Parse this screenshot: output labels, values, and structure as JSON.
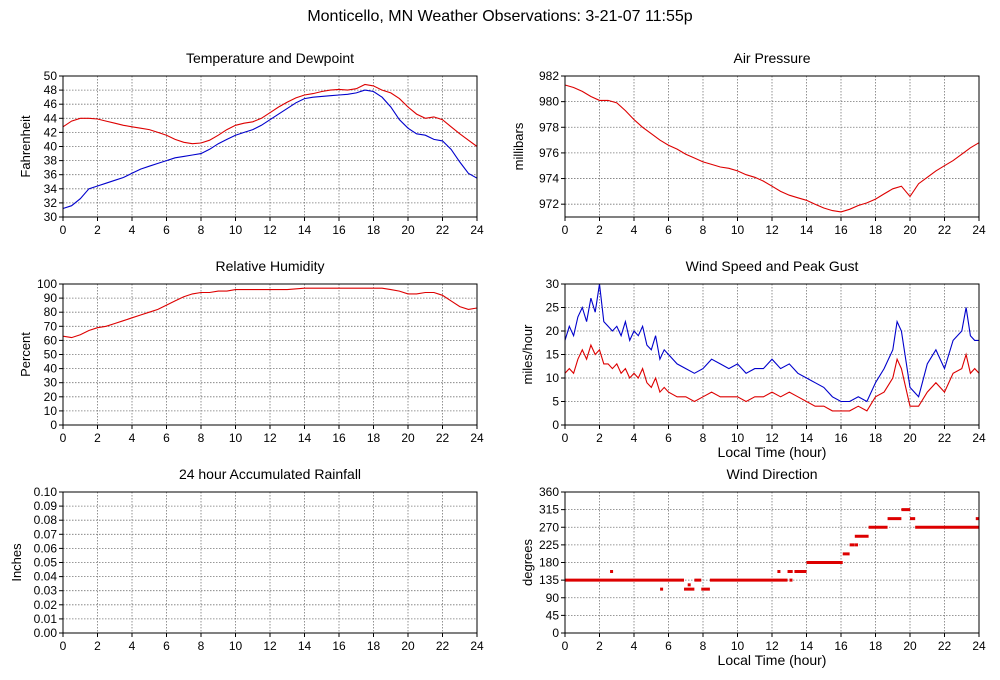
{
  "title": "Monticello, MN Weather Observations: 3-21-07 11:55p",
  "colors": {
    "red": "#dd0000",
    "blue": "#0000cc",
    "grid": "#777777"
  },
  "chart_data": [
    {
      "id": "temp",
      "type": "line",
      "title": "Temperature and Dewpoint",
      "ylabel": "Fahrenheit",
      "xlabel": "",
      "xlim": [
        0,
        24
      ],
      "ylim": [
        30,
        50
      ],
      "xticks": [
        0,
        2,
        4,
        6,
        8,
        10,
        12,
        14,
        16,
        18,
        20,
        22,
        24
      ],
      "yticks": [
        30,
        32,
        34,
        36,
        38,
        40,
        42,
        44,
        46,
        48,
        50
      ],
      "grid": true,
      "series": [
        {
          "color": "red",
          "x": [
            0,
            0.5,
            1,
            1.5,
            2,
            2.5,
            3,
            3.5,
            4,
            4.5,
            5,
            5.5,
            6,
            6.5,
            7,
            7.5,
            8,
            8.5,
            9,
            9.5,
            10,
            10.5,
            11,
            11.5,
            12,
            12.5,
            13,
            13.5,
            14,
            14.5,
            15,
            15.5,
            16,
            16.5,
            17,
            17.5,
            18,
            18.5,
            19,
            19.5,
            20,
            20.5,
            21,
            21.5,
            22,
            22.5,
            23,
            23.5,
            24
          ],
          "y": [
            42.8,
            43.6,
            44.0,
            44.0,
            43.9,
            43.6,
            43.3,
            43.0,
            42.8,
            42.6,
            42.4,
            42.0,
            41.6,
            41.0,
            40.6,
            40.4,
            40.5,
            40.9,
            41.6,
            42.4,
            43.0,
            43.3,
            43.5,
            44.0,
            44.8,
            45.6,
            46.3,
            46.9,
            47.3,
            47.5,
            47.8,
            48.0,
            48.1,
            48.0,
            48.2,
            48.8,
            48.6,
            48.0,
            47.6,
            46.8,
            45.6,
            44.6,
            44.0,
            44.2,
            43.8,
            42.8,
            41.8,
            40.9,
            40.0
          ]
        },
        {
          "color": "blue",
          "x": [
            0,
            0.5,
            1,
            1.5,
            2,
            2.5,
            3,
            3.5,
            4,
            4.5,
            5,
            5.5,
            6,
            6.5,
            7,
            7.5,
            8,
            8.5,
            9,
            9.5,
            10,
            10.5,
            11,
            11.5,
            12,
            12.5,
            13,
            13.5,
            14,
            14.5,
            15,
            15.5,
            16,
            16.5,
            17,
            17.5,
            18,
            18.5,
            19,
            19.5,
            20,
            20.5,
            21,
            21.5,
            22,
            22.5,
            23,
            23.5,
            24
          ],
          "y": [
            31.2,
            31.6,
            32.6,
            34.0,
            34.4,
            34.8,
            35.2,
            35.6,
            36.2,
            36.8,
            37.2,
            37.6,
            38.0,
            38.4,
            38.6,
            38.8,
            39.0,
            39.6,
            40.4,
            41.0,
            41.6,
            42.0,
            42.4,
            43.0,
            43.8,
            44.6,
            45.4,
            46.2,
            46.8,
            47.0,
            47.1,
            47.2,
            47.3,
            47.4,
            47.6,
            48.0,
            47.8,
            47.0,
            45.6,
            43.8,
            42.6,
            41.8,
            41.6,
            41.0,
            40.8,
            39.6,
            37.8,
            36.2,
            35.5
          ]
        }
      ]
    },
    {
      "id": "pressure",
      "type": "line",
      "title": "Air Pressure",
      "ylabel": "millibars",
      "xlabel": "",
      "xlim": [
        0,
        24
      ],
      "ylim": [
        971,
        982
      ],
      "xticks": [
        0,
        2,
        4,
        6,
        8,
        10,
        12,
        14,
        16,
        18,
        20,
        22,
        24
      ],
      "yticks": [
        972,
        974,
        976,
        978,
        980,
        982
      ],
      "grid": true,
      "series": [
        {
          "color": "red",
          "x": [
            0,
            0.5,
            1,
            1.5,
            2,
            2.5,
            3,
            3.5,
            4,
            4.5,
            5,
            5.5,
            6,
            6.5,
            7,
            7.5,
            8,
            8.5,
            9,
            9.5,
            10,
            10.5,
            11,
            11.5,
            12,
            12.5,
            13,
            13.5,
            14,
            14.5,
            15,
            15.5,
            16,
            16.5,
            17,
            17.5,
            18,
            18.5,
            19,
            19.5,
            20,
            20.5,
            21,
            21.5,
            22,
            22.5,
            23,
            23.5,
            24
          ],
          "y": [
            981.3,
            981.1,
            980.8,
            980.4,
            980.1,
            980.1,
            979.9,
            979.3,
            978.6,
            978.0,
            977.5,
            977.0,
            976.6,
            976.3,
            975.9,
            975.6,
            975.3,
            975.1,
            974.9,
            974.8,
            974.6,
            974.3,
            974.1,
            973.8,
            973.4,
            973.0,
            972.7,
            972.5,
            972.3,
            972.0,
            971.7,
            971.5,
            971.4,
            971.6,
            971.9,
            972.1,
            972.4,
            972.8,
            973.2,
            973.4,
            972.6,
            973.6,
            974.1,
            974.6,
            975.0,
            975.4,
            975.9,
            976.4,
            976.8
          ]
        }
      ]
    },
    {
      "id": "humidity",
      "type": "line",
      "title": "Relative Humidity",
      "ylabel": "Percent",
      "xlabel": "",
      "xlim": [
        0,
        24
      ],
      "ylim": [
        0,
        100
      ],
      "xticks": [
        0,
        2,
        4,
        6,
        8,
        10,
        12,
        14,
        16,
        18,
        20,
        22,
        24
      ],
      "yticks": [
        0,
        10,
        20,
        30,
        40,
        50,
        60,
        70,
        80,
        90,
        100
      ],
      "grid": true,
      "series": [
        {
          "color": "red",
          "x": [
            0,
            0.5,
            1,
            1.5,
            2,
            2.5,
            3,
            3.5,
            4,
            4.5,
            5,
            5.5,
            6,
            6.5,
            7,
            7.5,
            8,
            8.5,
            9,
            9.5,
            10,
            11,
            12,
            13,
            14,
            15,
            16,
            17,
            18,
            18.5,
            19,
            19.5,
            20,
            20.5,
            21,
            21.5,
            22,
            22.5,
            23,
            23.5,
            24
          ],
          "y": [
            63,
            62,
            64,
            67,
            69,
            70,
            72,
            74,
            76,
            78,
            80,
            82,
            85,
            88,
            91,
            93,
            94,
            94,
            95,
            95,
            96,
            96,
            96,
            96,
            97,
            97,
            97,
            97,
            97,
            97,
            96,
            95,
            93,
            93,
            94,
            94,
            92,
            88,
            84,
            82,
            83
          ]
        }
      ]
    },
    {
      "id": "wind",
      "type": "line",
      "title": "Wind Speed and Peak Gust",
      "ylabel": "miles/hour",
      "xlabel": "Local Time (hour)",
      "xlim": [
        0,
        24
      ],
      "ylim": [
        0,
        30
      ],
      "xticks": [
        0,
        2,
        4,
        6,
        8,
        10,
        12,
        14,
        16,
        18,
        20,
        22,
        24
      ],
      "yticks": [
        0,
        5,
        10,
        15,
        20,
        25,
        30
      ],
      "grid": true,
      "series": [
        {
          "color": "blue",
          "x": [
            0,
            0.25,
            0.5,
            0.75,
            1,
            1.25,
            1.5,
            1.75,
            2,
            2.25,
            2.5,
            2.75,
            3,
            3.25,
            3.5,
            3.75,
            4,
            4.25,
            4.5,
            4.75,
            5,
            5.25,
            5.5,
            5.75,
            6,
            6.5,
            7,
            7.5,
            8,
            8.5,
            9,
            9.5,
            10,
            10.5,
            11,
            11.5,
            12,
            12.5,
            13,
            13.5,
            14,
            14.5,
            15,
            15.5,
            16,
            16.5,
            17,
            17.5,
            18,
            18.5,
            19,
            19.25,
            19.5,
            19.75,
            20,
            20.5,
            21,
            21.5,
            22,
            22.5,
            23,
            23.25,
            23.5,
            23.75,
            24
          ],
          "y": [
            18,
            21,
            19,
            23,
            25,
            22,
            27,
            24,
            30,
            22,
            21,
            20,
            21,
            19,
            22,
            18,
            20,
            19,
            21,
            17,
            16,
            19,
            14,
            16,
            15,
            13,
            12,
            11,
            12,
            14,
            13,
            12,
            13,
            11,
            12,
            12,
            14,
            12,
            13,
            11,
            10,
            9,
            8,
            6,
            5,
            5,
            6,
            5,
            9,
            12,
            16,
            22,
            20,
            14,
            8,
            6,
            13,
            16,
            12,
            18,
            20,
            25,
            19,
            18,
            18
          ]
        },
        {
          "color": "red",
          "x": [
            0,
            0.25,
            0.5,
            0.75,
            1,
            1.25,
            1.5,
            1.75,
            2,
            2.25,
            2.5,
            2.75,
            3,
            3.25,
            3.5,
            3.75,
            4,
            4.25,
            4.5,
            4.75,
            5,
            5.25,
            5.5,
            5.75,
            6,
            6.5,
            7,
            7.5,
            8,
            8.5,
            9,
            9.5,
            10,
            10.5,
            11,
            11.5,
            12,
            12.5,
            13,
            13.5,
            14,
            14.5,
            15,
            15.5,
            16,
            16.5,
            17,
            17.5,
            18,
            18.5,
            19,
            19.25,
            19.5,
            19.75,
            20,
            20.5,
            21,
            21.5,
            22,
            22.5,
            23,
            23.25,
            23.5,
            23.75,
            24
          ],
          "y": [
            11,
            12,
            11,
            14,
            16,
            14,
            17,
            15,
            16,
            13,
            13,
            12,
            13,
            11,
            12,
            10,
            11,
            10,
            12,
            9,
            8,
            10,
            7,
            8,
            7,
            6,
            6,
            5,
            6,
            7,
            6,
            6,
            6,
            5,
            6,
            6,
            7,
            6,
            7,
            6,
            5,
            4,
            4,
            3,
            3,
            3,
            4,
            3,
            6,
            7,
            10,
            14,
            12,
            8,
            4,
            4,
            7,
            9,
            7,
            11,
            12,
            15,
            11,
            12,
            11
          ]
        }
      ]
    },
    {
      "id": "rain",
      "type": "line",
      "title": "24 hour Accumulated Rainfall",
      "ylabel": "Inches",
      "xlabel": "",
      "xlim": [
        0,
        24
      ],
      "ylim": [
        0,
        0.1
      ],
      "xticks": [
        0,
        2,
        4,
        6,
        8,
        10,
        12,
        14,
        16,
        18,
        20,
        22,
        24
      ],
      "yticks": [
        "0.00",
        "0.01",
        "0.02",
        "0.03",
        "0.04",
        "0.05",
        "0.06",
        "0.07",
        "0.08",
        "0.09",
        "0.10"
      ],
      "grid": true,
      "series": [
        {
          "color": "red",
          "x": [
            0,
            24
          ],
          "y": [
            0,
            0
          ]
        }
      ]
    },
    {
      "id": "direction",
      "type": "scatter",
      "title": "Wind Direction",
      "ylabel": "degrees",
      "xlabel": "Local Time (hour)",
      "xlim": [
        0,
        24
      ],
      "ylim": [
        0,
        360
      ],
      "xticks": [
        0,
        2,
        4,
        6,
        8,
        10,
        12,
        14,
        16,
        18,
        20,
        22,
        24
      ],
      "yticks": [
        0,
        45,
        90,
        135,
        180,
        225,
        270,
        315,
        360
      ],
      "grid": true,
      "segments": [
        {
          "x1": 0,
          "x2": 6.9,
          "y": 135
        },
        {
          "x1": 6.9,
          "x2": 7.5,
          "y": 112
        },
        {
          "x1": 7.5,
          "x2": 7.9,
          "y": 135
        },
        {
          "x1": 7.9,
          "x2": 8.4,
          "y": 112
        },
        {
          "x1": 8.4,
          "x2": 12.9,
          "y": 135
        },
        {
          "x1": 12.9,
          "x2": 13.2,
          "y": 157
        },
        {
          "x1": 13.3,
          "x2": 14.0,
          "y": 157
        },
        {
          "x1": 14.0,
          "x2": 16.1,
          "y": 180
        },
        {
          "x1": 16.1,
          "x2": 16.5,
          "y": 202
        },
        {
          "x1": 16.5,
          "x2": 16.8,
          "y": 225
        },
        {
          "x1": 16.8,
          "x2": 17.6,
          "y": 247
        },
        {
          "x1": 17.6,
          "x2": 18.7,
          "y": 270
        },
        {
          "x1": 18.7,
          "x2": 19.5,
          "y": 292
        },
        {
          "x1": 19.5,
          "x2": 20.0,
          "y": 315
        },
        {
          "x1": 20.0,
          "x2": 20.3,
          "y": 292
        },
        {
          "x1": 20.3,
          "x2": 24,
          "y": 270
        }
      ],
      "dots": [
        {
          "x": 2.7,
          "y": 157
        },
        {
          "x": 5.6,
          "y": 112
        },
        {
          "x": 7.2,
          "y": 123
        },
        {
          "x": 12.4,
          "y": 157
        },
        {
          "x": 13.1,
          "y": 135
        },
        {
          "x": 16.9,
          "y": 225
        },
        {
          "x": 23.9,
          "y": 292
        }
      ]
    }
  ]
}
